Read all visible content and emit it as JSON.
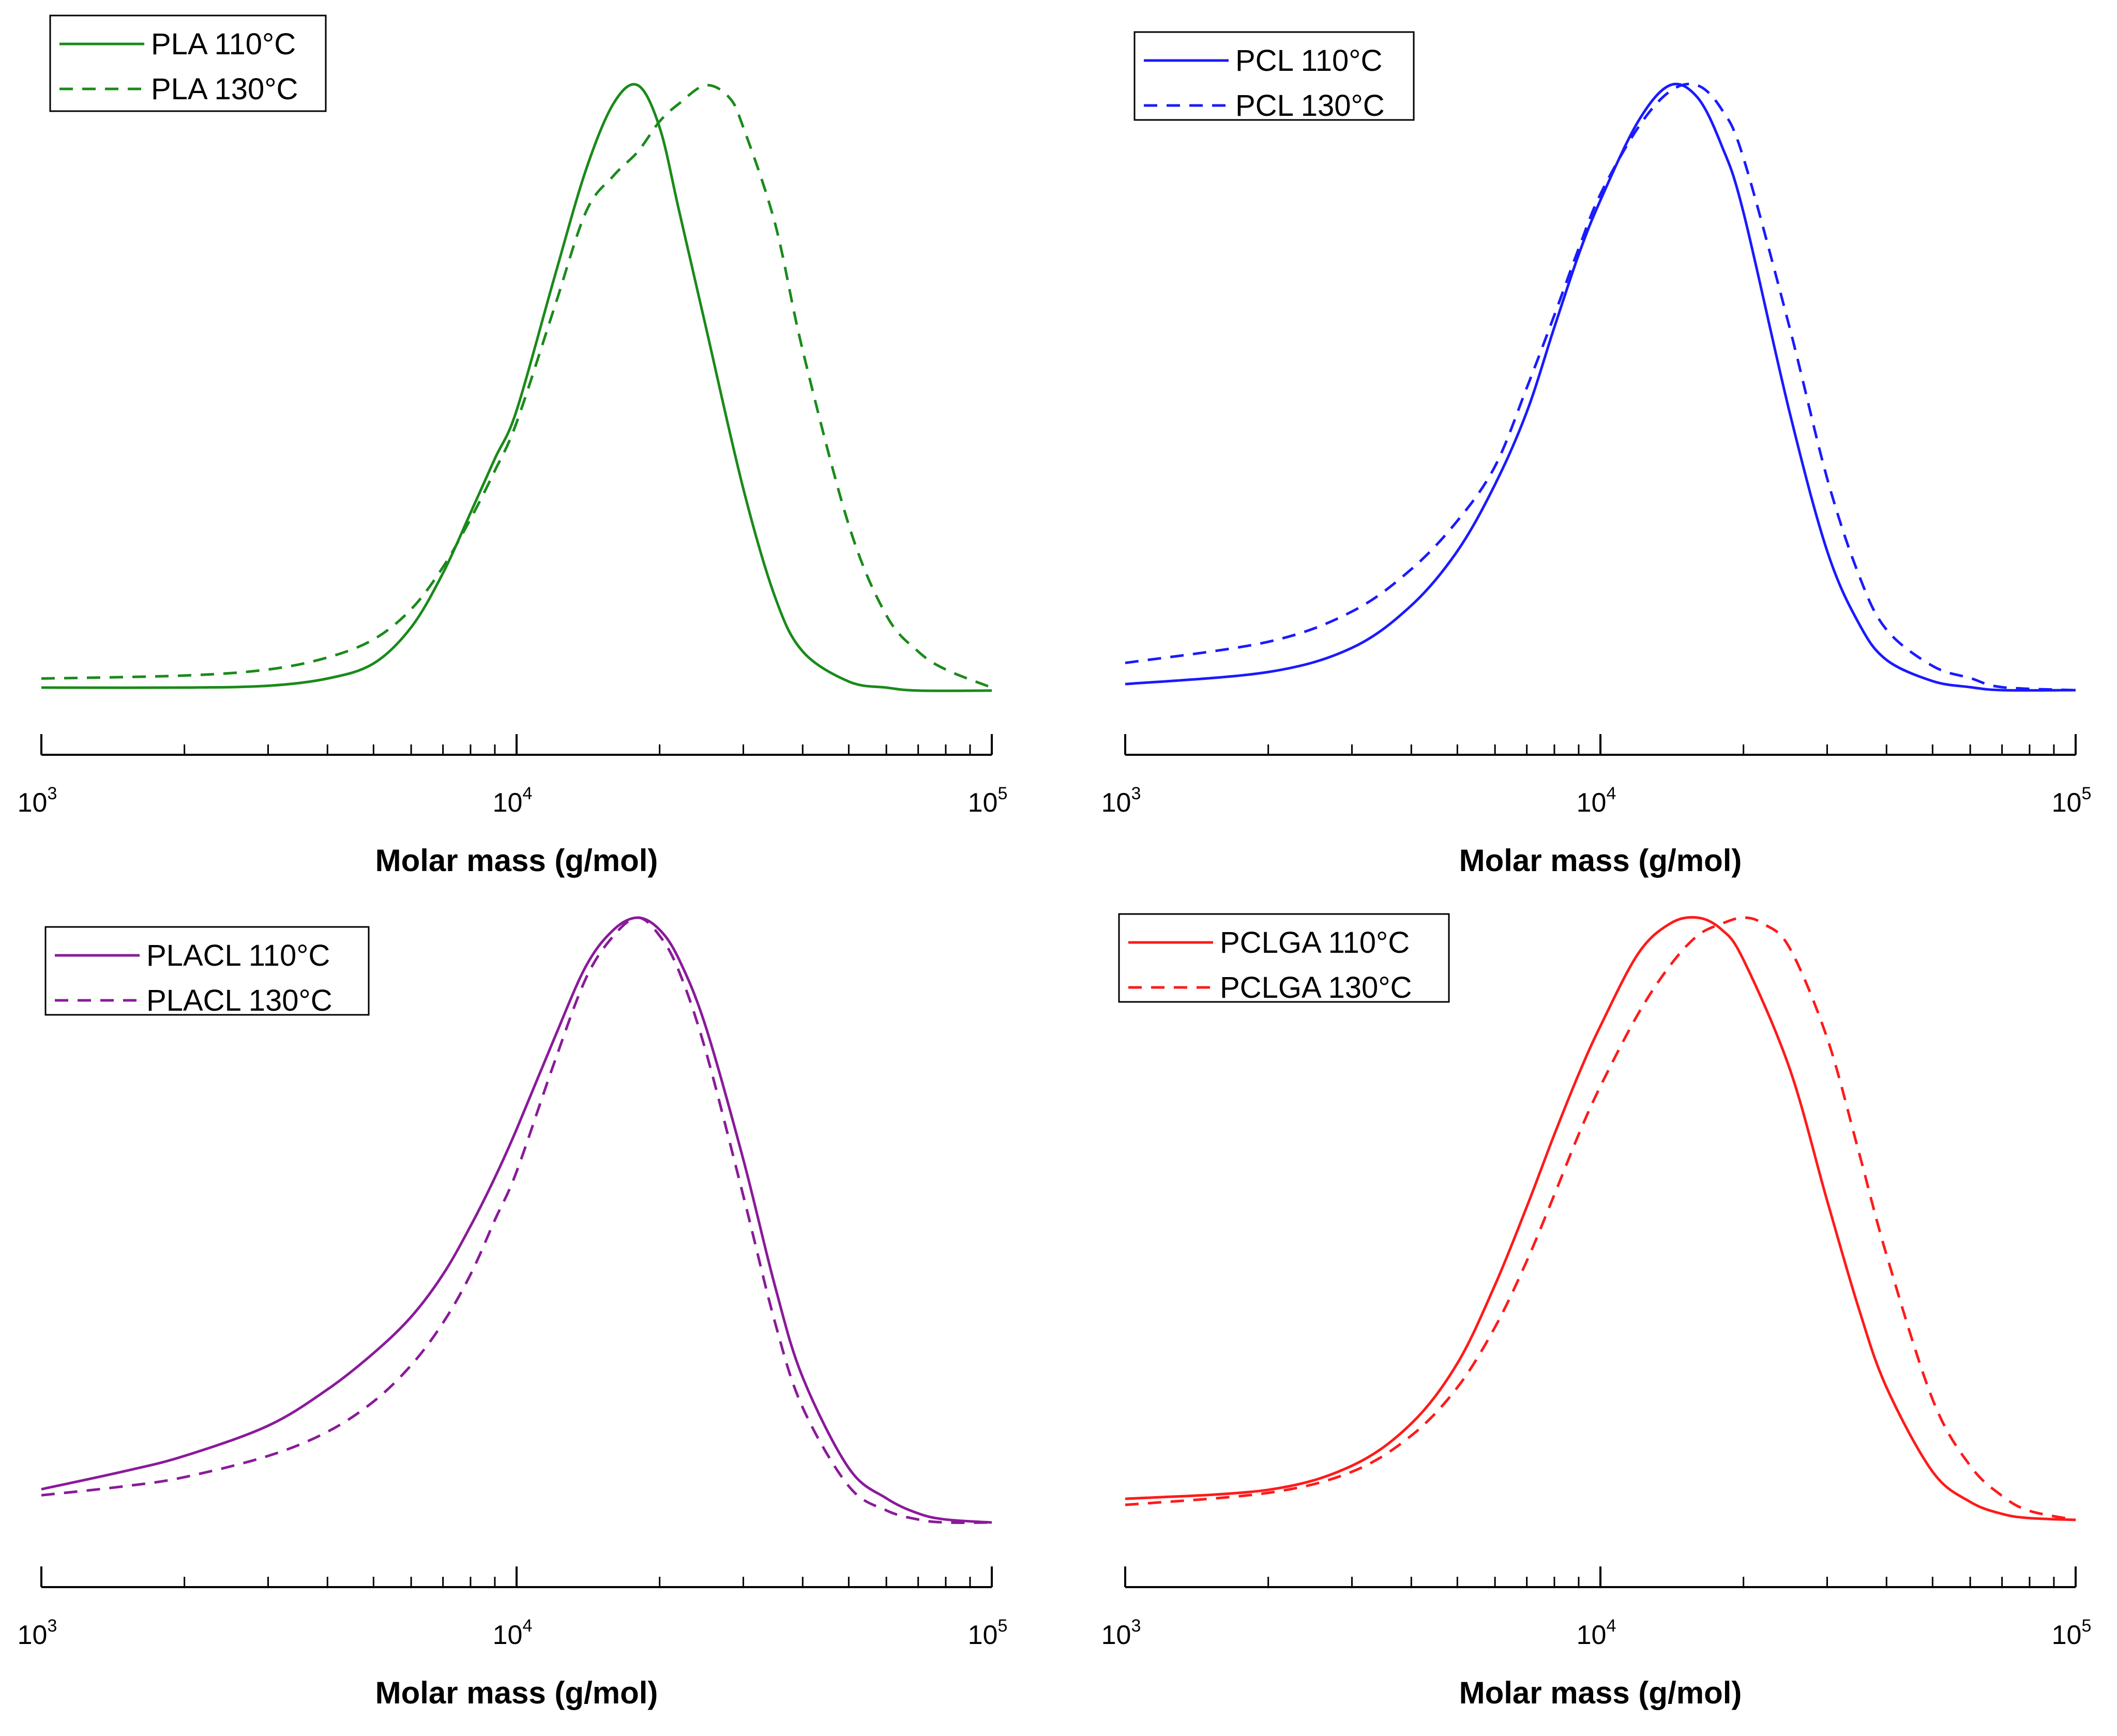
{
  "chart_data": [
    {
      "id": "pla",
      "type": "line",
      "xscale": "log",
      "xlim": [
        1000,
        100000
      ],
      "xlabel": "Molar mass (g/mol)",
      "ylabel": "",
      "ylim": [
        0,
        1
      ],
      "ticks": [
        {
          "base": "10",
          "exp": "3"
        },
        {
          "base": "10",
          "exp": "4"
        },
        {
          "base": "10",
          "exp": "5"
        }
      ],
      "legend_position": "top-left",
      "color": "#1a8a1a",
      "series": [
        {
          "name": "PLA 110°C",
          "style": "solid",
          "x": [
            1000,
            2000,
            3000,
            4000,
            5000,
            6000,
            7000,
            8000,
            9000,
            10000,
            12000,
            14000,
            16000,
            18000,
            20000,
            22000,
            25000,
            30000,
            35000,
            40000,
            50000,
            60000,
            70000,
            100000
          ],
          "y": [
            0.0,
            0.0,
            0.003,
            0.015,
            0.04,
            0.1,
            0.19,
            0.29,
            0.38,
            0.46,
            0.68,
            0.86,
            0.97,
            1.0,
            0.93,
            0.79,
            0.6,
            0.33,
            0.15,
            0.06,
            0.01,
            0.0,
            -0.005,
            -0.005
          ]
        },
        {
          "name": "PLA 130°C",
          "style": "dashed",
          "x": [
            1000,
            2000,
            3000,
            4000,
            5000,
            6000,
            7000,
            8000,
            9000,
            10000,
            12000,
            14000,
            16000,
            18000,
            20000,
            22000,
            25000,
            28000,
            30000,
            35000,
            40000,
            50000,
            60000,
            70000,
            80000,
            100000
          ],
          "y": [
            0.015,
            0.02,
            0.03,
            0.05,
            0.08,
            0.13,
            0.2,
            0.28,
            0.36,
            0.44,
            0.63,
            0.79,
            0.85,
            0.89,
            0.94,
            0.97,
            1.0,
            0.98,
            0.93,
            0.77,
            0.56,
            0.27,
            0.12,
            0.06,
            0.03,
            0.0
          ]
        }
      ]
    },
    {
      "id": "pcl",
      "type": "line",
      "xscale": "log",
      "xlim": [
        1000,
        100000
      ],
      "xlabel": "Molar mass (g/mol)",
      "ylabel": "",
      "ylim": [
        0,
        1
      ],
      "ticks": [
        {
          "base": "10",
          "exp": "3"
        },
        {
          "base": "10",
          "exp": "4"
        },
        {
          "base": "10",
          "exp": "5"
        }
      ],
      "legend_position": "top-left",
      "color": "#1a1aff",
      "series": [
        {
          "name": "PCL 110°C",
          "style": "solid",
          "x": [
            1000,
            2000,
            3000,
            4000,
            5000,
            6000,
            7000,
            8000,
            9000,
            10000,
            12000,
            14000,
            16000,
            18000,
            20000,
            25000,
            30000,
            35000,
            40000,
            50000,
            60000,
            70000,
            100000
          ],
          "y": [
            0.01,
            0.03,
            0.07,
            0.14,
            0.23,
            0.34,
            0.46,
            0.6,
            0.72,
            0.81,
            0.94,
            1.0,
            0.98,
            0.9,
            0.79,
            0.46,
            0.23,
            0.11,
            0.05,
            0.015,
            0.005,
            0.0,
            0.0
          ]
        },
        {
          "name": "PCL 130°C",
          "style": "dashed",
          "x": [
            1000,
            2000,
            3000,
            4000,
            5000,
            6000,
            7000,
            8000,
            9000,
            10000,
            12000,
            14000,
            16000,
            18000,
            20000,
            25000,
            30000,
            35000,
            40000,
            50000,
            60000,
            70000,
            100000
          ],
          "y": [
            0.045,
            0.08,
            0.13,
            0.2,
            0.28,
            0.37,
            0.5,
            0.62,
            0.73,
            0.82,
            0.93,
            0.99,
            1.0,
            0.96,
            0.88,
            0.6,
            0.35,
            0.19,
            0.1,
            0.04,
            0.02,
            0.005,
            0.0
          ]
        }
      ]
    },
    {
      "id": "placl",
      "type": "line",
      "xscale": "log",
      "xlim": [
        1000,
        100000
      ],
      "xlabel": "Molar mass (g/mol)",
      "ylabel": "",
      "ylim": [
        0,
        1
      ],
      "ticks": [
        {
          "base": "10",
          "exp": "3"
        },
        {
          "base": "10",
          "exp": "4"
        },
        {
          "base": "10",
          "exp": "5"
        }
      ],
      "legend_position": "top-left",
      "color": "#8a1a9a",
      "series": [
        {
          "name": "PLACL 110°C",
          "style": "solid",
          "x": [
            1000,
            1500,
            2000,
            3000,
            4000,
            5000,
            6000,
            7000,
            8000,
            9000,
            10000,
            12000,
            14000,
            16000,
            18000,
            20000,
            22000,
            25000,
            30000,
            35000,
            40000,
            50000,
            60000,
            70000,
            80000,
            100000
          ],
          "y": [
            0.055,
            0.085,
            0.11,
            0.16,
            0.22,
            0.28,
            0.34,
            0.41,
            0.49,
            0.57,
            0.65,
            0.8,
            0.92,
            0.98,
            1.0,
            0.98,
            0.93,
            0.82,
            0.6,
            0.39,
            0.24,
            0.09,
            0.04,
            0.015,
            0.005,
            0.0
          ]
        },
        {
          "name": "PLACL 130°C",
          "style": "dashed",
          "x": [
            1000,
            1500,
            2000,
            3000,
            4000,
            5000,
            6000,
            7000,
            8000,
            9000,
            10000,
            12000,
            14000,
            16000,
            18000,
            20000,
            22000,
            25000,
            30000,
            35000,
            40000,
            50000,
            60000,
            70000,
            80000,
            100000
          ],
          "y": [
            0.045,
            0.06,
            0.075,
            0.11,
            0.15,
            0.2,
            0.26,
            0.33,
            0.41,
            0.5,
            0.58,
            0.76,
            0.9,
            0.97,
            1.0,
            0.97,
            0.91,
            0.78,
            0.54,
            0.33,
            0.19,
            0.06,
            0.02,
            0.005,
            0.0,
            0.0
          ]
        }
      ]
    },
    {
      "id": "pclga",
      "type": "line",
      "xscale": "log",
      "xlim": [
        1000,
        100000
      ],
      "xlabel": "Molar mass (g/mol)",
      "ylabel": "",
      "ylim": [
        0,
        1
      ],
      "ticks": [
        {
          "base": "10",
          "exp": "3"
        },
        {
          "base": "10",
          "exp": "4"
        },
        {
          "base": "10",
          "exp": "5"
        }
      ],
      "legend_position": "top-left",
      "color": "#ff1a1a",
      "series": [
        {
          "name": "PCLGA 110°C",
          "style": "solid",
          "x": [
            1000,
            2000,
            3000,
            4000,
            5000,
            6000,
            7000,
            8000,
            9000,
            10000,
            12000,
            14000,
            16000,
            18000,
            20000,
            25000,
            30000,
            35000,
            40000,
            50000,
            60000,
            70000,
            80000,
            100000
          ],
          "y": [
            0.035,
            0.05,
            0.09,
            0.16,
            0.26,
            0.39,
            0.52,
            0.64,
            0.74,
            0.82,
            0.94,
            0.99,
            1.0,
            0.98,
            0.93,
            0.75,
            0.53,
            0.35,
            0.22,
            0.08,
            0.03,
            0.01,
            0.003,
            0.0
          ]
        },
        {
          "name": "PCLGA 130°C",
          "style": "dashed",
          "x": [
            1000,
            2000,
            3000,
            4000,
            5000,
            6000,
            7000,
            8000,
            9000,
            10000,
            12000,
            14000,
            16000,
            18000,
            20000,
            22000,
            25000,
            30000,
            35000,
            40000,
            50000,
            60000,
            70000,
            80000,
            100000
          ],
          "y": [
            0.025,
            0.045,
            0.08,
            0.14,
            0.22,
            0.32,
            0.43,
            0.54,
            0.64,
            0.72,
            0.84,
            0.92,
            0.97,
            0.99,
            1.0,
            0.99,
            0.95,
            0.8,
            0.61,
            0.44,
            0.2,
            0.09,
            0.04,
            0.015,
            0.0
          ]
        }
      ]
    }
  ]
}
